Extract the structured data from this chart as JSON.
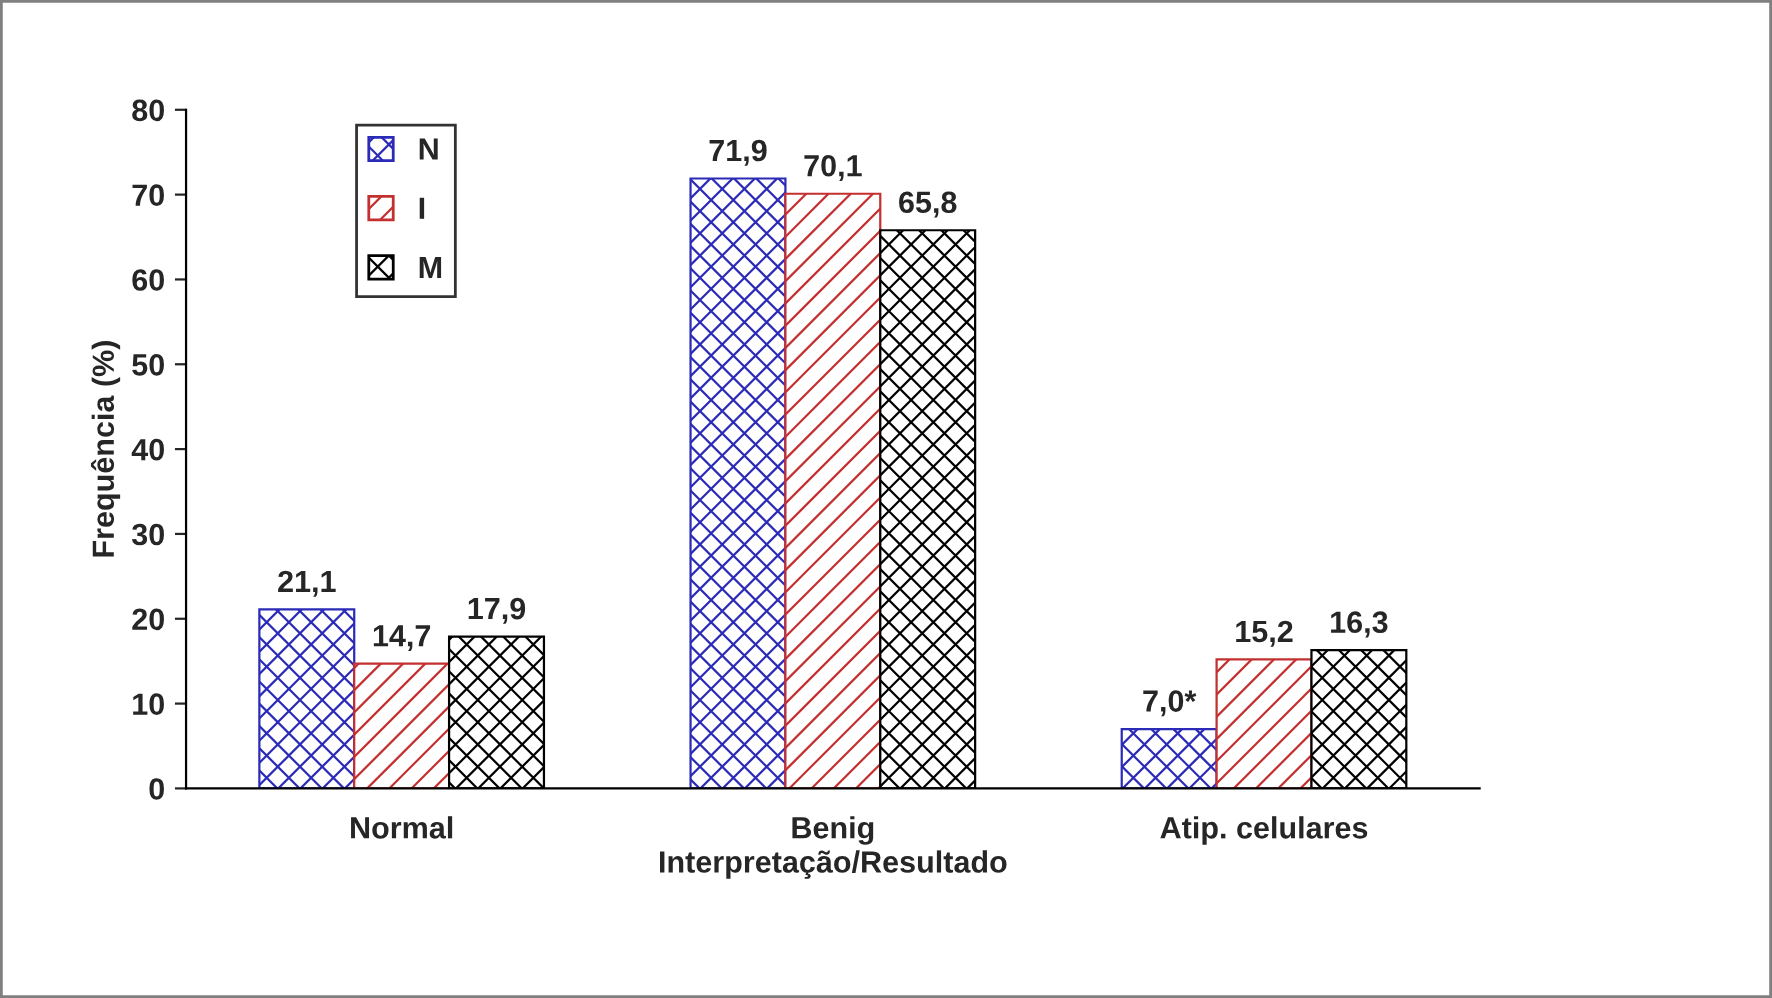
{
  "chart_data": {
    "type": "bar",
    "xlabel": "Interpretação/Resultado",
    "ylabel": "Frequência (%)",
    "categories": [
      "Normal",
      "Benig",
      "Atip. celulares"
    ],
    "series": [
      {
        "name": "N",
        "color": "#2b2bb8",
        "values": [
          21.1,
          71.9,
          7.0
        ],
        "value_labels": [
          "21,1",
          "71,9",
          "7,0*"
        ]
      },
      {
        "name": "I",
        "color": "#c43030",
        "values": [
          14.7,
          70.1,
          15.2
        ],
        "value_labels": [
          "14,7",
          "70,1",
          "15,2"
        ]
      },
      {
        "name": "M",
        "color": "#000000",
        "values": [
          17.9,
          65.8,
          16.3
        ],
        "value_labels": [
          "17,9",
          "65,8",
          "16,3"
        ]
      }
    ],
    "ylim": [
      0,
      80
    ],
    "yticks": [
      0,
      10,
      20,
      30,
      40,
      50,
      60,
      70,
      80
    ],
    "grid": false,
    "legend": "top left"
  }
}
